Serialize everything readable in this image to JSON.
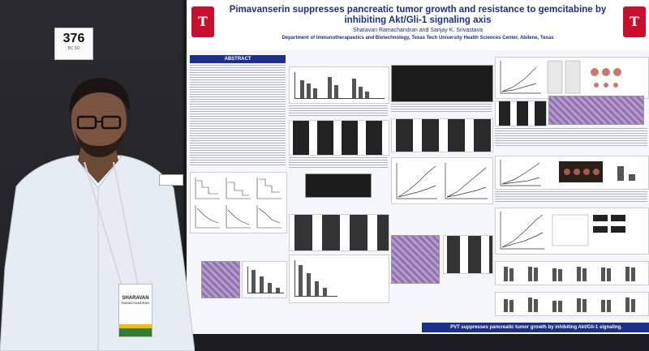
{
  "board_number": "376",
  "board_sub": "BC 5O",
  "poster": {
    "title": "Pimavanserin suppresses pancreatic tumor growth and resistance to gemcitabine by inhibiting Akt/Gli-1 signaling axis",
    "authors": "Sharavan Ramachandran and Sanjay K. Srivastava",
    "affiliation": "Department of Immunotherapeutics and Biotechnology, Texas Tech University Health Sciences Center, Abilene, Texas",
    "abstract_heading": "ABSTRACT",
    "conclusion": "PVT suppresses pancreatic tumor growth by inhibiting Akt/Gli-1 signaling."
  },
  "badge": {
    "first_name": "SHARAVAN",
    "last_name": "RAMACHANDRAN"
  },
  "colors": {
    "poster_title": "#1c2f8a",
    "logo_red": "#c8102e",
    "badge_stripe": "#2e7d32"
  }
}
